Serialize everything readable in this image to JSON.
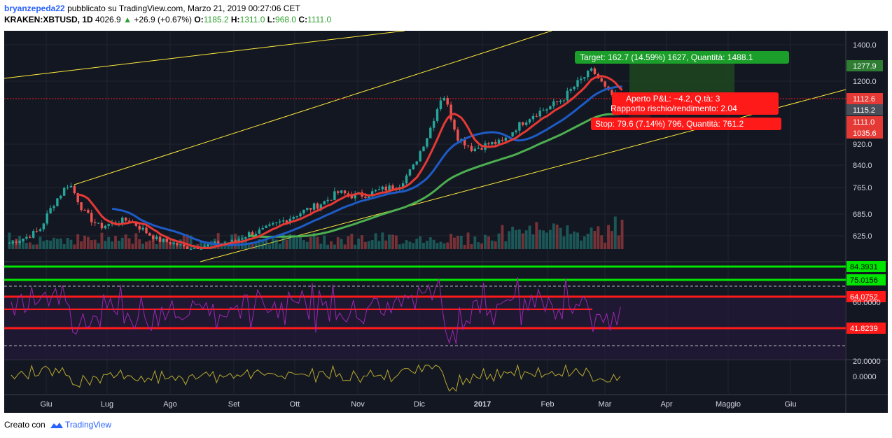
{
  "header": {
    "author": "bryanzepeda22",
    "published_text": "pubblicato su TradingView.com, Marzo 21, 2019 00:27:06 CET",
    "symbol": "KRAKEN:XBTUSD, 1D",
    "last": "4026.9",
    "change": "+26.9 (+0.67%)",
    "o_label": "O:",
    "o": "1185.2",
    "h_label": "H:",
    "h": "1311.0",
    "l_label": "L:",
    "l": "968.0",
    "c_label": "C:",
    "c": "1111.0"
  },
  "footer": {
    "created_with": "Creato con",
    "brand": "TradingView"
  },
  "colors": {
    "background": "#131722",
    "candle_up": "#26a69a",
    "candle_down": "#ef5350",
    "ma_short": "#e53935",
    "ma_mid": "#1e5bc6",
    "ma_long": "#4caf50",
    "trendline": "#ffeb3b",
    "rsi": "#9c27b0",
    "green_level": "#00e600",
    "red_level": "#ff1a1a"
  },
  "chart_data": {
    "type": "candlestick",
    "price_axis_ticks": [
      "1400.0",
      "1200.0",
      "920.0",
      "840.0",
      "765.0",
      "685.0",
      "625.0"
    ],
    "price_badges": [
      {
        "label": "1277.9",
        "color": "#2e7d32"
      },
      {
        "label": "1112.6",
        "color": "#e53935"
      },
      {
        "label": "1115.2",
        "color": "#4a4e58"
      },
      {
        "label": "1111.0",
        "color": "#e53935"
      },
      {
        "label": "1035.6",
        "color": "#e53935"
      }
    ],
    "x_ticks": [
      "Giu",
      "Lug",
      "Ago",
      "Set",
      "Ott",
      "Nov",
      "Dic",
      "2017",
      "Feb",
      "Mar",
      "Apr",
      "Maggio",
      "Giu"
    ],
    "price_series": [
      600,
      618,
      640,
      720,
      780,
      690,
      650,
      660,
      670,
      640,
      610,
      600,
      580,
      590,
      600,
      605,
      630,
      640,
      660,
      680,
      700,
      720,
      750,
      740,
      745,
      760,
      770,
      830,
      960,
      1150,
      950,
      900,
      920,
      930,
      1000,
      1050,
      1080,
      1120,
      1190,
      1260,
      1150,
      1110
    ],
    "position_labels": {
      "target": "Target: 162.7 (14.59%) 1627, Quantità: 1488.1",
      "open_pl": "Aperto P&L: −4.2, Q.tà: 3",
      "risk_reward": "Rapporto rischio/rendimento: 2.04",
      "stop": "Stop: 79.6 (7.14%) 796, Quantità: 761.2"
    },
    "rsi_panel": {
      "levels": [
        {
          "label": "84.3931",
          "color": "#00e600"
        },
        {
          "label": "75.0156",
          "color": "#00e600"
        },
        {
          "label": "64.0752",
          "color": "#ff1a1a"
        },
        {
          "label": "41.8239",
          "color": "#ff1a1a"
        }
      ],
      "axis_labels": [
        "60.0000"
      ]
    },
    "osc_panel": {
      "axis_labels": [
        "20.0000",
        "0.0000"
      ]
    }
  }
}
